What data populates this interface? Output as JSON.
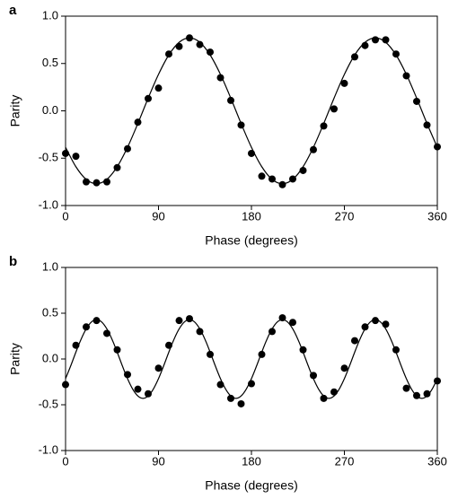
{
  "chart_data": [
    {
      "type": "scatter",
      "panel_label": "a",
      "x_label": "Phase (degrees)",
      "y_label": "Parity",
      "xlim": [
        0,
        360
      ],
      "ylim": [
        -1,
        1
      ],
      "xticks": [
        0,
        90,
        180,
        270,
        360
      ],
      "yticks": [
        {
          "value": -1,
          "label": "-1.0"
        },
        -0.5,
        {
          "value": 0,
          "label": "0.0"
        },
        0.5,
        {
          "value": 1,
          "label": "1.0"
        }
      ],
      "color": "#000000",
      "x": [
        0,
        10,
        20,
        30,
        40,
        50,
        60,
        70,
        80,
        90,
        100,
        110,
        120,
        130,
        140,
        150,
        160,
        170,
        180,
        190,
        200,
        210,
        220,
        230,
        240,
        250,
        260,
        270,
        280,
        290,
        300,
        310,
        320,
        330,
        340,
        350,
        360
      ],
      "values": [
        -0.45,
        -0.48,
        -0.75,
        -0.76,
        -0.75,
        -0.6,
        -0.4,
        -0.12,
        0.13,
        0.24,
        0.6,
        0.68,
        0.77,
        0.7,
        0.62,
        0.35,
        0.11,
        -0.15,
        -0.45,
        -0.69,
        -0.72,
        -0.78,
        -0.72,
        -0.63,
        -0.41,
        -0.16,
        0.02,
        0.29,
        0.57,
        0.69,
        0.75,
        0.75,
        0.6,
        0.37,
        0.1,
        -0.15,
        -0.38
      ],
      "fit": {
        "x": [
          0,
          10,
          20,
          30,
          40,
          50,
          60,
          70,
          80,
          90,
          100,
          110,
          120,
          130,
          140,
          150,
          160,
          170,
          180,
          190,
          200,
          210,
          220,
          230,
          240,
          250,
          260,
          270,
          280,
          290,
          300,
          310,
          320,
          330,
          340,
          350,
          360
        ],
        "values": [
          -0.385,
          -0.59,
          -0.724,
          -0.77,
          -0.724,
          -0.59,
          -0.385,
          -0.134,
          0.134,
          0.385,
          0.59,
          0.724,
          0.77,
          0.724,
          0.59,
          0.385,
          0.134,
          -0.134,
          -0.385,
          -0.59,
          -0.724,
          -0.77,
          -0.724,
          -0.59,
          -0.385,
          -0.134,
          0.134,
          0.385,
          0.59,
          0.724,
          0.77,
          0.724,
          0.59,
          0.385,
          0.134,
          -0.134,
          -0.385
        ]
      }
    },
    {
      "type": "scatter",
      "panel_label": "b",
      "x_label": "Phase (degrees)",
      "y_label": "Parity",
      "xlim": [
        0,
        360
      ],
      "ylim": [
        -1,
        1
      ],
      "xticks": [
        0,
        90,
        180,
        270,
        360
      ],
      "yticks": [
        {
          "value": -1,
          "label": "-1.0"
        },
        -0.5,
        {
          "value": 0,
          "label": "0.0"
        },
        0.5,
        {
          "value": 1,
          "label": "1.0"
        }
      ],
      "color": "#000000",
      "x": [
        0,
        10,
        20,
        30,
        40,
        50,
        60,
        70,
        80,
        90,
        100,
        110,
        120,
        130,
        140,
        150,
        160,
        170,
        180,
        190,
        200,
        210,
        220,
        230,
        240,
        250,
        260,
        270,
        280,
        290,
        300,
        310,
        320,
        330,
        340,
        350,
        360
      ],
      "values": [
        -0.28,
        0.15,
        0.35,
        0.42,
        0.28,
        0.1,
        -0.17,
        -0.33,
        -0.38,
        -0.1,
        0.15,
        0.42,
        0.44,
        0.3,
        0.05,
        -0.28,
        -0.43,
        -0.49,
        -0.27,
        0.05,
        0.3,
        0.45,
        0.4,
        0.1,
        -0.18,
        -0.43,
        -0.36,
        -0.1,
        0.2,
        0.35,
        0.42,
        0.38,
        0.1,
        -0.32,
        -0.4,
        -0.38,
        -0.24
      ],
      "fit": {
        "x": [
          0,
          5,
          10,
          15,
          20,
          25,
          30,
          35,
          40,
          45,
          50,
          55,
          60,
          65,
          70,
          75,
          80,
          85,
          90,
          95,
          100,
          105,
          110,
          115,
          120,
          125,
          130,
          135,
          140,
          145,
          150,
          155,
          160,
          165,
          170,
          175,
          180,
          185,
          190,
          195,
          200,
          205,
          210,
          215,
          220,
          225,
          230,
          235,
          240,
          245,
          250,
          255,
          260,
          265,
          270,
          275,
          280,
          285,
          290,
          295,
          300,
          305,
          310,
          315,
          320,
          325,
          330,
          335,
          340,
          345,
          350,
          355,
          360
        ],
        "values": [
          -0.215,
          -0.075,
          0.075,
          0.215,
          0.329,
          0.404,
          0.43,
          0.404,
          0.329,
          0.215,
          0.075,
          -0.075,
          -0.215,
          -0.329,
          -0.404,
          -0.43,
          -0.404,
          -0.329,
          -0.215,
          -0.075,
          0.075,
          0.215,
          0.329,
          0.404,
          0.43,
          0.404,
          0.329,
          0.215,
          0.075,
          -0.075,
          -0.215,
          -0.329,
          -0.404,
          -0.43,
          -0.404,
          -0.329,
          -0.215,
          -0.075,
          0.075,
          0.215,
          0.329,
          0.404,
          0.43,
          0.404,
          0.329,
          0.215,
          0.075,
          -0.075,
          -0.215,
          -0.329,
          -0.404,
          -0.43,
          -0.404,
          -0.329,
          -0.215,
          -0.075,
          0.075,
          0.215,
          0.329,
          0.404,
          0.43,
          0.404,
          0.329,
          0.215,
          0.075,
          -0.075,
          -0.215,
          -0.329,
          -0.404,
          -0.43,
          -0.404,
          -0.329,
          -0.215
        ]
      }
    }
  ]
}
